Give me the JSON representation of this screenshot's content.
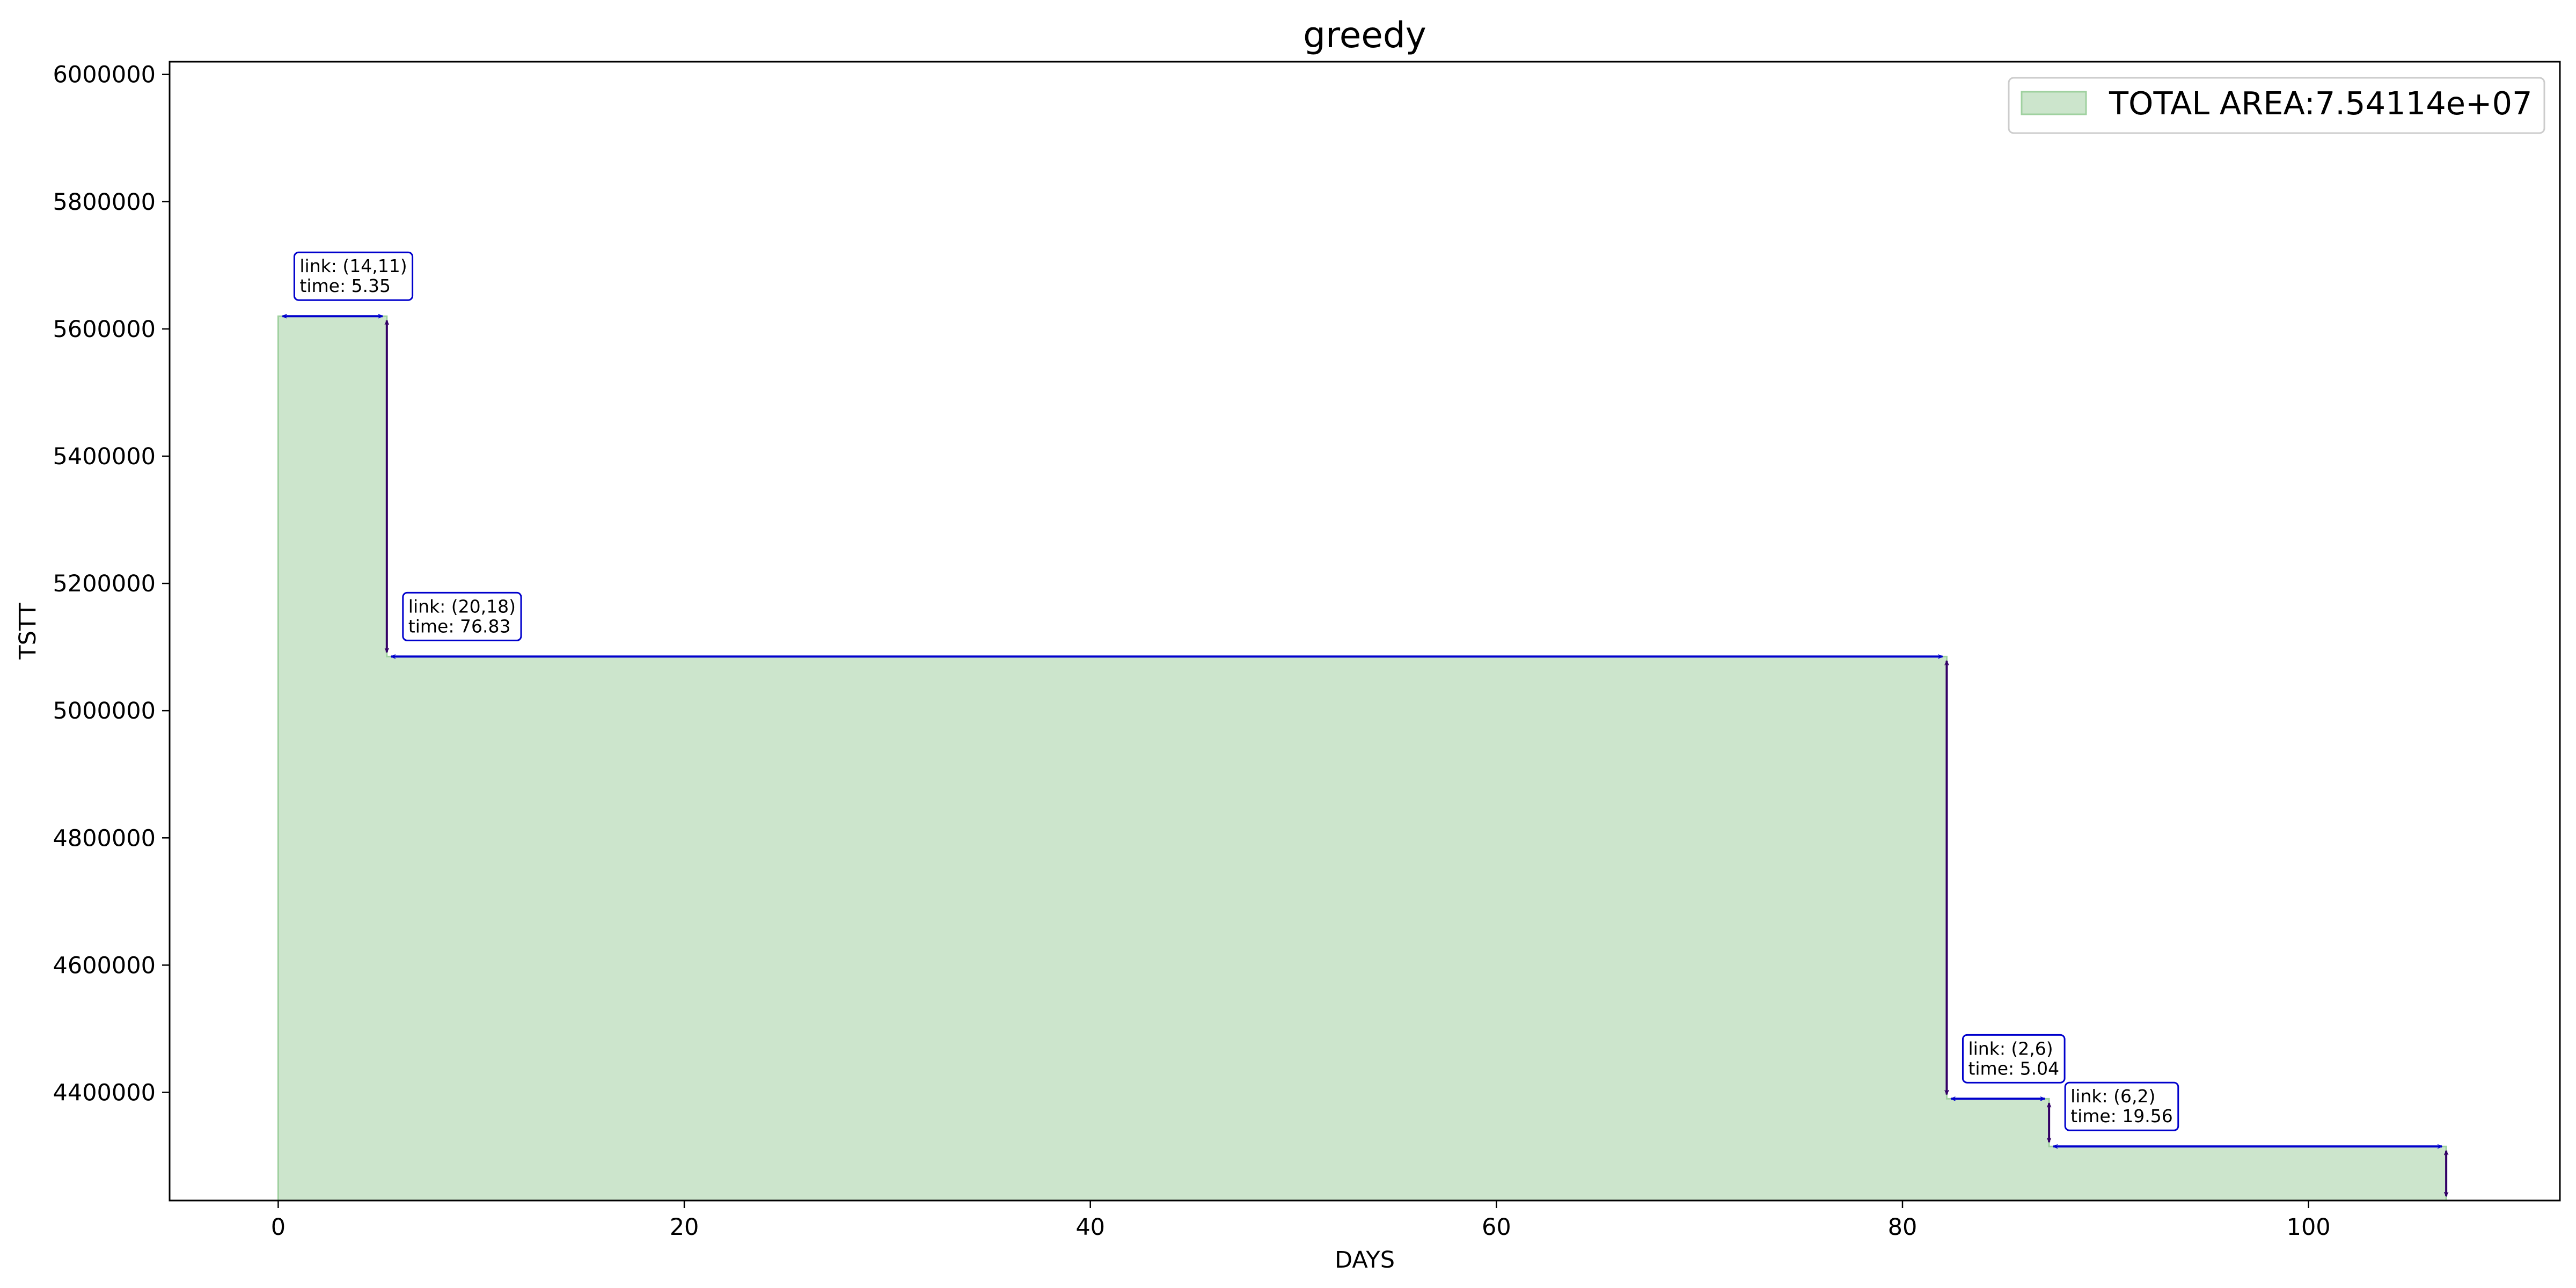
{
  "chart_data": {
    "type": "area",
    "title": "greedy",
    "xlabel": "DAYS",
    "ylabel": "TSTT",
    "xlim": [
      -5.35,
      112.38
    ],
    "ylim": [
      4230000,
      6020000
    ],
    "xticks": [
      0,
      20,
      40,
      60,
      80,
      100
    ],
    "yticks": [
      4400000,
      4600000,
      4800000,
      5000000,
      5200000,
      5400000,
      5600000,
      5800000,
      6000000
    ],
    "legend_position": "upper right",
    "grid": false,
    "series": [
      {
        "name": "TOTAL AREA:7.54114e+07",
        "color": "#cce5cc",
        "edge_color": "#9fd19f",
        "steps": [
          {
            "x": 0,
            "y": 5620000
          },
          {
            "x": 5.35,
            "y": 5085000
          },
          {
            "x": 82.18,
            "y": 4390000
          },
          {
            "x": 87.22,
            "y": 4315000
          },
          {
            "x": 106.78,
            "y": 4230000
          }
        ]
      }
    ],
    "annotations": [
      {
        "link": "link: (14,11)",
        "time": "time: 5.35",
        "x0": 0,
        "x1": 5.35,
        "y": 5620000,
        "y_next": 5085000
      },
      {
        "link": "link: (20,18)",
        "time": "time: 76.83",
        "x0": 5.35,
        "x1": 82.18,
        "y": 5085000,
        "y_next": 4390000
      },
      {
        "link": "link: (2,6)",
        "time": "time: 5.04",
        "x0": 82.18,
        "x1": 87.22,
        "y": 4390000,
        "y_next": 4315000
      },
      {
        "link": "link: (6,2)",
        "time": "time: 19.56",
        "x0": 87.22,
        "x1": 106.78,
        "y": 4315000,
        "y_next": 4230000
      }
    ],
    "horizontal_arrow_color": "#0000cc",
    "vertical_arrow_color": "#330066"
  }
}
